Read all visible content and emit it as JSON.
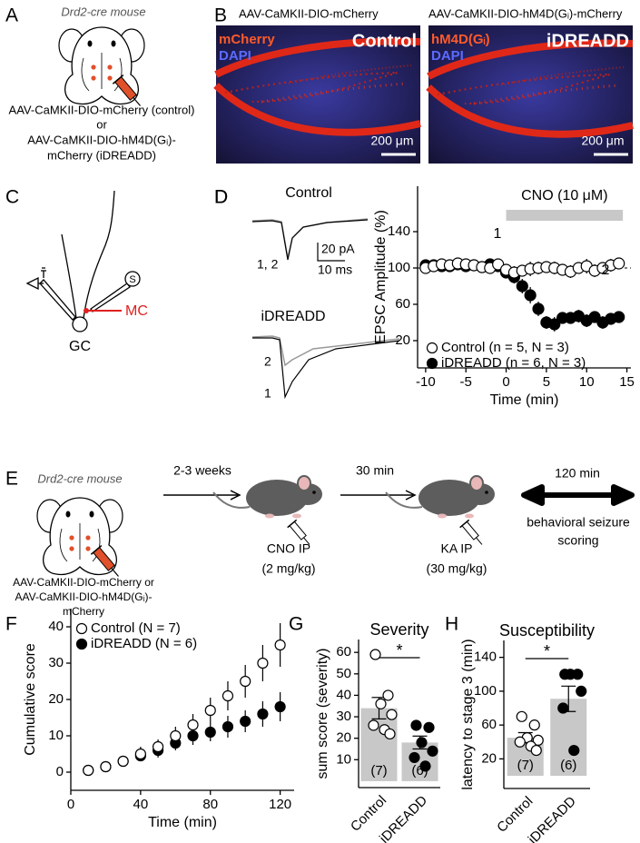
{
  "panel_a": {
    "label": "A",
    "mouse": "Drd2-cre mouse",
    "lines": [
      "AAV-CaMKII-DIO-mCherry (control)",
      "or",
      "AAV-CaMKII-DIO-hM4D(Gᵢ)-",
      "mCherry (iDREADD)"
    ]
  },
  "panel_b": {
    "label": "B",
    "images": [
      {
        "title": "AAV-CaMKII-DIO-mCherry",
        "stain": "mCherry",
        "counter": "DAPI",
        "group": "Control",
        "scale": "200 μm"
      },
      {
        "title": "AAV-CaMKII-DIO-hM4D(Gᵢ)-mCherry",
        "stain": "hM4D(Gᵢ)",
        "counter": "DAPI",
        "group": "iDREADD",
        "scale": "200 μm"
      }
    ]
  },
  "panel_c": {
    "label": "C",
    "stim": "S",
    "mc": "MC",
    "gc": "GC"
  },
  "panel_d": {
    "label": "D",
    "control": "Control",
    "scale_y": "20 pA",
    "scale_x": "10 ms",
    "control_traces": "1, 2",
    "idreadd": "iDREADD",
    "trace_2": "2",
    "trace_1": "1"
  },
  "panel_e": {
    "label": "E",
    "mouse": "Drd2-cre mouse",
    "virus": [
      "AAV-CaMKII-DIO-mCherry or",
      "AAV-CaMKII-DIO-hM4D(Gᵢ)-",
      "mCherry"
    ],
    "wait": "2-3 weeks",
    "cno": [
      "CNO IP",
      "(2 mg/kg)"
    ],
    "delay": "30 min",
    "ka": [
      "KA IP",
      "(30 mg/kg)"
    ],
    "duration": "120 min",
    "scoring": [
      "behavioral seizure",
      "scoring"
    ]
  },
  "chart_data": [
    {
      "type": "scatter",
      "panel_label": "D",
      "xlabel": "Time (min)",
      "ylabel": "EPSC Amplitude (%)",
      "xlim": [
        -11,
        15.5
      ],
      "ylim": [
        -10,
        190
      ],
      "xticks": [
        -10,
        -5,
        0,
        5,
        10,
        15
      ],
      "yticks": [
        20,
        60,
        100,
        140
      ],
      "reference_line": 100,
      "shade": {
        "label": "CNO (10 μM)",
        "range": [
          0,
          14.5
        ]
      },
      "annotations": [
        "1",
        "2"
      ],
      "legend": "lower left",
      "x": [
        -10,
        -9,
        -8,
        -7,
        -6,
        -5,
        -4,
        -3,
        -2,
        -1,
        0,
        1,
        2,
        3,
        4,
        5,
        6,
        7,
        8,
        9,
        10,
        11,
        12,
        13,
        14
      ],
      "series": [
        {
          "name": "Control (n = 5, N = 3)",
          "color": "#000000",
          "fill": "#ffffff",
          "values": [
            100,
            102,
            104,
            103,
            105,
            104,
            103,
            101,
            100,
            104,
            98,
            95,
            97,
            99,
            100,
            101,
            100,
            98,
            96,
            100,
            102,
            97,
            100,
            103,
            105
          ],
          "errors": [
            6,
            5,
            6,
            5,
            6,
            5,
            6,
            5,
            6,
            5,
            6,
            7,
            6,
            8,
            7,
            6,
            7,
            6,
            7,
            6,
            8,
            7,
            6,
            7,
            6
          ]
        },
        {
          "name": "iDREADD (n = 6, N = 3)",
          "color": "#000000",
          "fill": "#000000",
          "values": [
            103,
            103,
            102,
            102,
            104,
            102,
            103,
            101,
            104,
            102,
            95,
            90,
            80,
            70,
            55,
            40,
            38,
            45,
            45,
            47,
            42,
            46,
            40,
            44,
            46
          ],
          "errors": [
            5,
            5,
            5,
            5,
            5,
            5,
            5,
            5,
            5,
            5,
            6,
            7,
            8,
            9,
            8,
            7,
            8,
            6,
            6,
            7,
            7,
            6,
            7,
            6,
            5
          ]
        }
      ]
    },
    {
      "type": "scatter",
      "panel_label": "F",
      "xlabel": "Time (min)",
      "ylabel": "Cumulative score",
      "xlim": [
        0,
        128
      ],
      "ylim": [
        -5,
        45
      ],
      "xticks": [
        0,
        40,
        80,
        120
      ],
      "yticks": [
        0,
        10,
        20,
        30,
        40
      ],
      "legend": "upper left",
      "x": [
        10,
        20,
        30,
        40,
        50,
        60,
        70,
        80,
        90,
        100,
        110,
        120
      ],
      "series": [
        {
          "name": "Control (N = 7)",
          "color": "#000000",
          "fill": "#ffffff",
          "values": [
            0.5,
            1.5,
            3,
            5,
            7,
            10,
            13,
            17,
            21,
            25,
            30,
            35
          ],
          "errors": [
            0.5,
            1,
            1.5,
            2,
            2,
            2.5,
            3,
            3.5,
            4,
            4.5,
            5,
            6
          ]
        },
        {
          "name": "iDREADD (N = 6)",
          "color": "#000000",
          "fill": "#000000",
          "values": [
            0.5,
            1.5,
            3,
            4.5,
            6,
            8,
            10,
            11,
            12.5,
            14,
            16,
            18
          ],
          "errors": [
            0.5,
            1,
            1,
            1.5,
            2,
            2,
            2.5,
            2.5,
            3,
            3,
            3.5,
            4
          ]
        }
      ]
    },
    {
      "type": "bar",
      "panel_label": "G",
      "title": "Severity",
      "ylabel": "sum score (severity)",
      "categories": [
        "Control",
        "iDREADD"
      ],
      "values": [
        34,
        18
      ],
      "errors": [
        5,
        3
      ],
      "n_labels": [
        "(7)",
        "(6)"
      ],
      "points": [
        [
          59,
          40,
          36,
          31,
          26,
          24,
          22
        ],
        [
          26,
          25,
          18,
          14,
          11,
          7
        ]
      ],
      "point_fills": [
        "#ffffff",
        "#000000"
      ],
      "color": "#c8c8c8",
      "ylim": [
        -3,
        66
      ],
      "yticks": [
        10,
        20,
        30,
        40,
        50,
        60
      ],
      "significance": "*"
    },
    {
      "type": "bar",
      "panel_label": "H",
      "title": "Susceptibility",
      "ylabel": "latency to stage 3 (min)",
      "categories": [
        "Control",
        "iDREADD"
      ],
      "values": [
        45,
        91
      ],
      "errors": [
        6,
        15
      ],
      "n_labels": [
        "(7)",
        "(6)"
      ],
      "points": [
        [
          70,
          60,
          45,
          42,
          40,
          35,
          30
        ],
        [
          120,
          120,
          120,
          100,
          80,
          30
        ]
      ],
      "point_fills": [
        "#ffffff",
        "#000000"
      ],
      "color": "#c8c8c8",
      "ylim": [
        -15,
        160
      ],
      "yticks": [
        20,
        60,
        100,
        140
      ],
      "significance": "*"
    }
  ]
}
